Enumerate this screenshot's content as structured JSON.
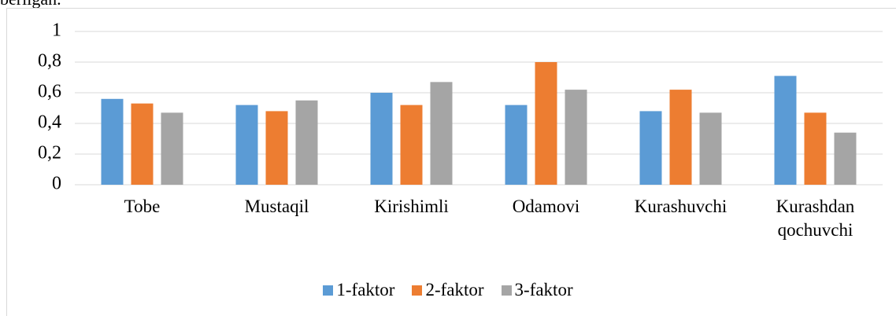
{
  "preceding_text": "berilgan.",
  "chart_data": {
    "type": "bar",
    "categories": [
      "Tobe",
      "Mustaqil",
      "Kirishimli",
      "Odamovi",
      "Kurashuvchi",
      "Kurashdan qochuvchi"
    ],
    "series": [
      {
        "name": "1-faktor",
        "color": "#5b9bd5",
        "values": [
          0.56,
          0.52,
          0.6,
          0.52,
          0.48,
          0.71
        ]
      },
      {
        "name": "2-faktor",
        "color": "#ed7d31",
        "values": [
          0.53,
          0.48,
          0.52,
          0.8,
          0.62,
          0.47
        ]
      },
      {
        "name": "3-faktor",
        "color": "#a5a5a5",
        "values": [
          0.47,
          0.55,
          0.67,
          0.62,
          0.47,
          0.34
        ]
      }
    ],
    "ylim": [
      0,
      1
    ],
    "yticks": [
      0,
      {
        "value": 0.2,
        "label": "0,2"
      },
      {
        "value": 0.4,
        "label": "0,4"
      },
      {
        "value": 0.6,
        "label": "0,6"
      },
      {
        "value": 0.8,
        "label": "0,8"
      },
      1
    ],
    "grid": true,
    "legend": "bottom"
  }
}
